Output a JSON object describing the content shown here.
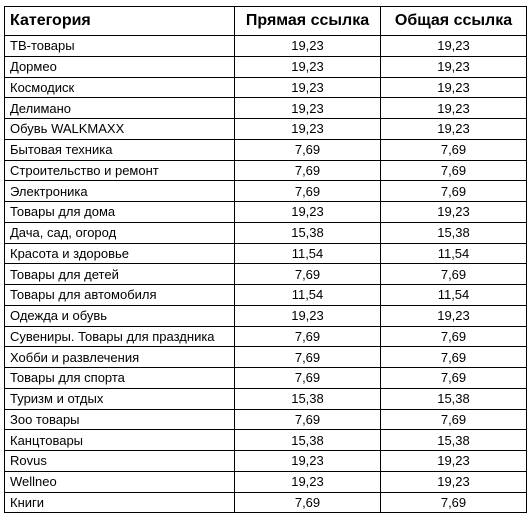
{
  "table": {
    "headers": [
      "Категория",
      "Прямая ссылка",
      "Общая ссылка"
    ],
    "rows": [
      [
        "ТВ-товары",
        "19,23",
        "19,23"
      ],
      [
        "Дормео",
        "19,23",
        "19,23"
      ],
      [
        "Космодиск",
        "19,23",
        "19,23"
      ],
      [
        "Делимано",
        "19,23",
        "19,23"
      ],
      [
        "Обувь WALKMAXX",
        "19,23",
        "19,23"
      ],
      [
        "Бытовая техника",
        "7,69",
        "7,69"
      ],
      [
        "Строительство и ремонт",
        "7,69",
        "7,69"
      ],
      [
        "Электроника",
        "7,69",
        "7,69"
      ],
      [
        "Товары для дома",
        "19,23",
        "19,23"
      ],
      [
        "Дача, сад, огород",
        "15,38",
        "15,38"
      ],
      [
        "Красота и здоровье",
        "11,54",
        "11,54"
      ],
      [
        "Товары для детей",
        "7,69",
        "7,69"
      ],
      [
        "Товары для автомобиля",
        "11,54",
        "11,54"
      ],
      [
        "Одежда и обувь",
        "19,23",
        "19,23"
      ],
      [
        "Сувениры. Товары для праздника",
        "7,69",
        "7,69"
      ],
      [
        "Хобби и развлечения",
        "7,69",
        "7,69"
      ],
      [
        "Товары для спорта",
        "7,69",
        "7,69"
      ],
      [
        "Туризм и отдых",
        "15,38",
        "15,38"
      ],
      [
        "Зоо товары",
        "7,69",
        "7,69"
      ],
      [
        "Канцтовары",
        "15,38",
        "15,38"
      ],
      [
        "Rovus",
        "19,23",
        "19,23"
      ],
      [
        "Wellneo",
        "19,23",
        "19,23"
      ],
      [
        "Книги",
        "7,69",
        "7,69"
      ]
    ]
  }
}
